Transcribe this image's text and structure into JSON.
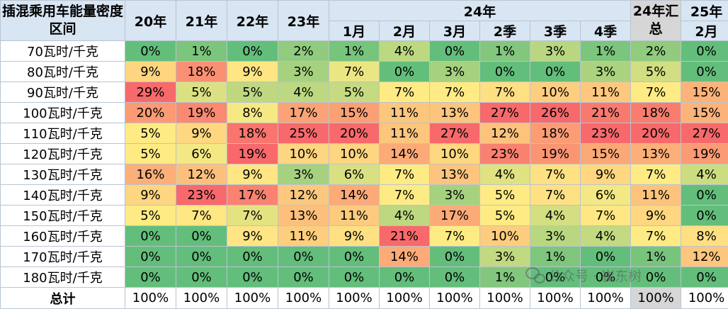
{
  "table": {
    "corner_label": "插混乘用车能量密度区间",
    "years": [
      "20年",
      "21年",
      "22年",
      "23年"
    ],
    "year24": "24年",
    "sub24": [
      "1月",
      "2月",
      "3月",
      "2季",
      "3季",
      "4季"
    ],
    "sum_label": "24年汇总",
    "year25": "25年",
    "sub25": "2月",
    "rows": [
      {
        "label": "70瓦时/千克",
        "values": [
          "0%",
          "1%",
          "0%",
          "2%",
          "1%",
          "4%",
          "0%",
          "1%",
          "3%",
          "1%",
          "2%",
          "0%"
        ]
      },
      {
        "label": "80瓦时/千克",
        "values": [
          "9%",
          "18%",
          "9%",
          "3%",
          "7%",
          "0%",
          "3%",
          "0%",
          "0%",
          "3%",
          "5%",
          "0%"
        ]
      },
      {
        "label": "90瓦时/千克",
        "values": [
          "29%",
          "5%",
          "5%",
          "4%",
          "5%",
          "7%",
          "7%",
          "7%",
          "10%",
          "11%",
          "7%",
          "15%"
        ]
      },
      {
        "label": "100瓦时/千克",
        "values": [
          "20%",
          "19%",
          "8%",
          "17%",
          "15%",
          "11%",
          "13%",
          "27%",
          "26%",
          "21%",
          "18%",
          "15%"
        ]
      },
      {
        "label": "110瓦时/千克",
        "values": [
          "5%",
          "9%",
          "18%",
          "25%",
          "20%",
          "11%",
          "27%",
          "12%",
          "18%",
          "23%",
          "20%",
          "27%"
        ]
      },
      {
        "label": "120瓦时/千克",
        "values": [
          "5%",
          "6%",
          "19%",
          "10%",
          "10%",
          "14%",
          "10%",
          "23%",
          "19%",
          "15%",
          "13%",
          "19%"
        ]
      },
      {
        "label": "130瓦时/千克",
        "values": [
          "16%",
          "12%",
          "9%",
          "3%",
          "6%",
          "7%",
          "13%",
          "4%",
          "7%",
          "9%",
          "7%",
          "4%"
        ]
      },
      {
        "label": "140瓦时/千克",
        "values": [
          "9%",
          "23%",
          "17%",
          "12%",
          "14%",
          "7%",
          "3%",
          "5%",
          "7%",
          "6%",
          "11%",
          "0%"
        ]
      },
      {
        "label": "150瓦时/千克",
        "values": [
          "5%",
          "7%",
          "7%",
          "13%",
          "11%",
          "4%",
          "17%",
          "5%",
          "4%",
          "7%",
          "9%",
          "0%"
        ]
      },
      {
        "label": "160瓦时/千克",
        "values": [
          "0%",
          "0%",
          "9%",
          "11%",
          "9%",
          "21%",
          "7%",
          "10%",
          "3%",
          "4%",
          "7%",
          "8%"
        ]
      },
      {
        "label": "170瓦时/千克",
        "values": [
          "0%",
          "0%",
          "0%",
          "0%",
          "0%",
          "14%",
          "0%",
          "3%",
          "1%",
          "0%",
          "1%",
          "12%"
        ]
      },
      {
        "label": "180瓦时/千克",
        "values": [
          "0%",
          "0%",
          "0%",
          "0%",
          "0%",
          "0%",
          "0%",
          "1%",
          "0%",
          "0%",
          "0%",
          "0%"
        ]
      }
    ],
    "total_label": "总计",
    "totals": [
      "100%",
      "100%",
      "100%",
      "100%",
      "100%",
      "100%",
      "100%",
      "100%",
      "100%",
      "100%",
      "100%",
      "100%"
    ]
  },
  "watermark": "公众号 · 崔东树",
  "colors": {
    "header_bg": "#d8e5f2",
    "summary_bg": "#d6d6d6",
    "border": "#b9c4d0",
    "scale_low": "#63be7b",
    "scale_mid": "#ffeb84",
    "scale_high": "#f8696b"
  }
}
